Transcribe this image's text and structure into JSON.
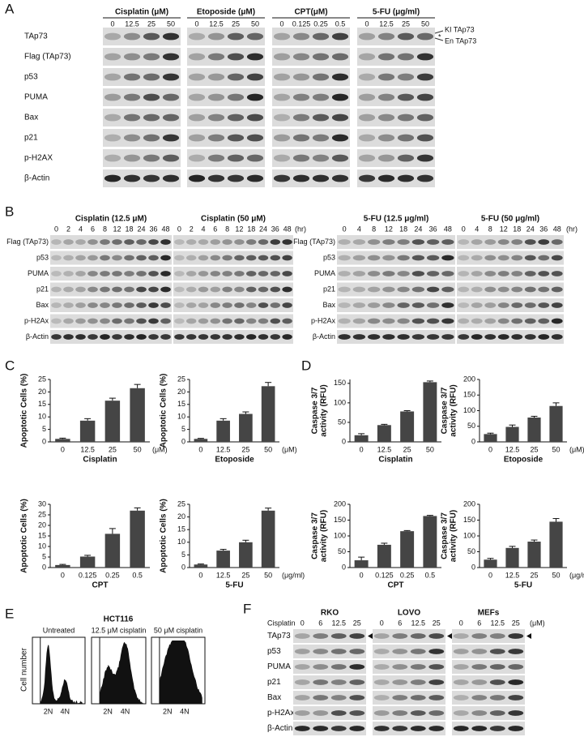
{
  "panel_labels": [
    "A",
    "B",
    "C",
    "D",
    "E",
    "F"
  ],
  "panel_a": {
    "groups": [
      {
        "title": "Cisplatin (μM)",
        "doses": [
          "0",
          "12.5",
          "25",
          "50"
        ]
      },
      {
        "title": "Etoposide (μM)",
        "doses": [
          "0",
          "12.5",
          "25",
          "50"
        ]
      },
      {
        "title": "CPT(μM)",
        "doses": [
          "0",
          "0.125",
          "0.25",
          "0.5"
        ]
      },
      {
        "title": "5-FU (μg/ml)",
        "doses": [
          "0",
          "12.5",
          "25",
          "50"
        ]
      }
    ],
    "rows": [
      "TAp73",
      "Flag (TAp73)",
      "p53",
      "PUMA",
      "Bax",
      "p21",
      "p-H2AX",
      "β-Actin"
    ],
    "annotations": [
      "KI TAp73",
      "En TAp73",
      "*"
    ]
  },
  "panel_b": {
    "blocks": [
      {
        "groups": [
          {
            "title": "Cisplatin (12.5 μM)",
            "times": [
              "0",
              "2",
              "4",
              "6",
              "8",
              "12",
              "18",
              "24",
              "36",
              "48"
            ]
          },
          {
            "title": "Cisplatin (50 μM)",
            "times": [
              "0",
              "2",
              "4",
              "6",
              "8",
              "12",
              "18",
              "24",
              "36",
              "48"
            ]
          }
        ],
        "unit": "(hr)",
        "rows": [
          "Flag (TAp73)",
          "p53",
          "PUMA",
          "p21",
          "Bax",
          "p-H2Ax",
          "β-Actin"
        ]
      },
      {
        "groups": [
          {
            "title": "5-FU (12.5 μg/ml)",
            "times": [
              "0",
              "4",
              "8",
              "12",
              "18",
              "24",
              "36",
              "48"
            ]
          },
          {
            "title": "5-FU (50 μg/ml)",
            "times": [
              "0",
              "4",
              "8",
              "12",
              "18",
              "24",
              "36",
              "48"
            ]
          }
        ],
        "unit": "(hr)",
        "rows": [
          "Flag (TAp73)",
          "p53",
          "PUMA",
          "p21",
          "Bax",
          "p-H2Ax",
          "β-Actin"
        ]
      }
    ]
  },
  "chart_data": [
    {
      "type": "bar",
      "ylabel": [
        "Apoptotic Cells (%)"
      ],
      "xlabel": "Cisplatin",
      "x_unit": "(μM)",
      "categories": [
        "0",
        "12.5",
        "25",
        "50"
      ],
      "values": [
        1.2,
        8.5,
        16.5,
        21.5
      ],
      "errors": [
        0.3,
        0.8,
        1,
        1.5
      ],
      "ylim": [
        0,
        25
      ],
      "yticks": [
        0,
        5,
        10,
        15,
        20,
        25
      ],
      "color": "#454545"
    },
    {
      "type": "bar",
      "ylabel": [
        "Apoptotic Cells (%)"
      ],
      "xlabel": "Etoposide",
      "x_unit": "(μM)",
      "categories": [
        "0",
        "12.5",
        "25",
        "50"
      ],
      "values": [
        1.2,
        8.5,
        11.2,
        22.3
      ],
      "errors": [
        0.2,
        0.8,
        0.8,
        1.5
      ],
      "ylim": [
        0,
        25
      ],
      "yticks": [
        0,
        5,
        10,
        15,
        20,
        25
      ],
      "color": "#454545"
    },
    {
      "type": "bar",
      "ylabel": [
        "Apoptotic Cells (%)"
      ],
      "xlabel": "CPT",
      "categories": [
        "0",
        "0.125",
        "0.25",
        "0.5"
      ],
      "values": [
        1.2,
        5.2,
        16,
        27
      ],
      "errors": [
        0.3,
        0.6,
        2.5,
        1.3
      ],
      "ylim": [
        0,
        30
      ],
      "yticks": [
        0,
        5,
        10,
        15,
        20,
        25,
        30
      ],
      "color": "#454545"
    },
    {
      "type": "bar",
      "ylabel": [
        "Apoptotic Cells (%)"
      ],
      "xlabel": "5-FU",
      "x_unit": "(μg/ml)",
      "categories": [
        "0",
        "12.5",
        "25",
        "50"
      ],
      "values": [
        1.2,
        6.7,
        10,
        22.5
      ],
      "errors": [
        0.2,
        0.5,
        0.8,
        1
      ],
      "ylim": [
        0,
        25
      ],
      "yticks": [
        0,
        5,
        10,
        15,
        20,
        25
      ],
      "color": "#454545"
    },
    {
      "type": "bar",
      "ylabel": [
        "Caspase 3/7",
        "activity (RFU)"
      ],
      "xlabel": "Cisplatin",
      "categories": [
        "0",
        "12.5",
        "25",
        "50"
      ],
      "values": [
        17,
        43,
        78,
        153
      ],
      "errors": [
        4,
        2,
        2,
        3
      ],
      "ylim": [
        0,
        160
      ],
      "yticks": [
        0,
        50,
        100,
        150
      ],
      "color": "#454545"
    },
    {
      "type": "bar",
      "ylabel": [
        "Caspase 3/7",
        "activity (RFU)"
      ],
      "xlabel": "Etoposide",
      "x_unit": "(μM)",
      "categories": [
        "0",
        "12.5",
        "25",
        "50"
      ],
      "values": [
        25,
        48,
        78,
        115
      ],
      "errors": [
        3,
        6,
        4,
        10
      ],
      "ylim": [
        0,
        200
      ],
      "yticks": [
        0,
        50,
        100,
        150,
        200
      ],
      "color": "#454545"
    },
    {
      "type": "bar",
      "ylabel": [
        "Caspase 3/7",
        "activity (RFU)"
      ],
      "xlabel": "CPT",
      "categories": [
        "0",
        "0.125",
        "0.25",
        "0.5"
      ],
      "values": [
        23,
        72,
        115,
        163
      ],
      "errors": [
        10,
        5,
        2,
        2
      ],
      "ylim": [
        0,
        200
      ],
      "yticks": [
        0,
        50,
        100,
        150,
        200
      ],
      "color": "#454545"
    },
    {
      "type": "bar",
      "ylabel": [
        "Caspase 3/7",
        "activity (RFU)"
      ],
      "xlabel": "5-FU",
      "x_unit": "(μg/ml)",
      "categories": [
        "0",
        "12.5",
        "25",
        "50"
      ],
      "values": [
        25,
        62,
        82,
        145
      ],
      "errors": [
        4,
        5,
        5,
        10
      ],
      "ylim": [
        0,
        200
      ],
      "yticks": [
        0,
        50,
        100,
        150,
        200
      ],
      "color": "#454545"
    }
  ],
  "panel_e": {
    "title": "HCT116",
    "ylabel": "Cell number",
    "conditions": [
      "Untreated",
      "12.5 μM cisplatin",
      "50 μM cisplatin"
    ],
    "peaks": [
      "2N",
      "4N"
    ]
  },
  "panel_f": {
    "treatment": "Cisplatin",
    "unit": "(μM)",
    "groups": [
      {
        "title": "RKO",
        "doses": [
          "0",
          "6",
          "12.5",
          "25"
        ]
      },
      {
        "title": "LOVO",
        "doses": [
          "0",
          "6",
          "12.5",
          "25"
        ]
      },
      {
        "title": "MEFs",
        "doses": [
          "0",
          "6",
          "12.5",
          "25"
        ]
      }
    ],
    "rows": [
      "TAp73",
      "p53",
      "PUMA",
      "p21",
      "Bax",
      "p-H2Ax",
      "β-Actin"
    ]
  }
}
